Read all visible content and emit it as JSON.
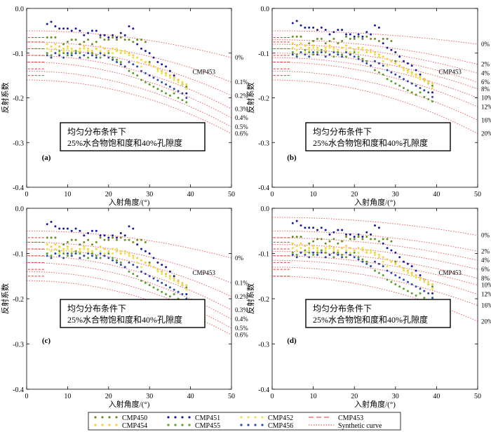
{
  "chart_data": {
    "type": "scatter",
    "shared": {
      "xlabel": "入射角度/(°)",
      "ylabel": "反射系数",
      "xlim": [
        0,
        50
      ],
      "ylim": [
        -0.4,
        0.0
      ],
      "xticks": [
        0,
        10,
        20,
        30,
        40,
        50
      ],
      "yticks": [
        0.0,
        -0.1,
        -0.2,
        -0.3,
        -0.4
      ],
      "ytick_labels": [
        "0.0",
        "-0.1",
        "-0.2",
        "-0.3",
        "-0.4"
      ],
      "annotation_line1": "均匀分布条件下",
      "annotation_line2": "25%水合物饱和度和40%孔隙度",
      "highlight_label": "CMP453",
      "grid": false
    },
    "legend": {
      "placement": "bottom",
      "series": [
        {
          "name": "CMP450",
          "color": "#6b8e23",
          "marker": "point"
        },
        {
          "name": "CMP451",
          "color": "#1a1aa0",
          "marker": "point"
        },
        {
          "name": "CMP452",
          "color": "#e6e64a",
          "marker": "point"
        },
        {
          "name": "CMP453",
          "color": "#e63232",
          "marker": "dash"
        },
        {
          "name": "CMP454",
          "color": "#ffcc33",
          "marker": "point"
        },
        {
          "name": "CMP455",
          "color": "#5aa02c",
          "marker": "point"
        },
        {
          "name": "CMP456",
          "color": "#2a4ab0",
          "marker": "point"
        },
        {
          "name": "Synthetic curve",
          "color": "#e63232",
          "marker": "dotted-line"
        }
      ]
    },
    "series": [
      {
        "name": "CMP450",
        "x": [
          5,
          6,
          7,
          8,
          9,
          10,
          11,
          12,
          13,
          14,
          15,
          16,
          17,
          18,
          19,
          20,
          21,
          22,
          23,
          24,
          25,
          26,
          27,
          28,
          29,
          30,
          31,
          32,
          33,
          34,
          35,
          36,
          37,
          38,
          39
        ],
        "y": [
          -0.065,
          -0.065,
          -0.065,
          -0.085,
          -0.08,
          -0.075,
          -0.07,
          -0.07,
          -0.08,
          -0.075,
          -0.07,
          -0.08,
          -0.075,
          -0.065,
          -0.07,
          -0.07,
          -0.065,
          -0.07,
          -0.065,
          -0.07,
          -0.07,
          -0.075,
          -0.07,
          -0.07,
          -0.075,
          -0.12,
          -0.13,
          -0.135,
          -0.14,
          -0.145,
          -0.15,
          -0.155,
          -0.16,
          -0.17,
          -0.175
        ]
      },
      {
        "name": "CMP451",
        "x": [
          5,
          6,
          7,
          8,
          9,
          10,
          11,
          12,
          13,
          14,
          15,
          16,
          17,
          18,
          19,
          20,
          21,
          22,
          23,
          24,
          25,
          26,
          27,
          28,
          29,
          30,
          31,
          32,
          33,
          34,
          35,
          36,
          37,
          38,
          39
        ],
        "y": [
          -0.035,
          -0.03,
          -0.04,
          -0.045,
          -0.045,
          -0.045,
          -0.05,
          -0.045,
          -0.05,
          -0.06,
          -0.055,
          -0.05,
          -0.05,
          -0.06,
          -0.06,
          -0.065,
          -0.06,
          -0.065,
          -0.055,
          -0.06,
          -0.04,
          -0.045,
          -0.08,
          -0.09,
          -0.095,
          -0.1,
          -0.11,
          -0.12,
          -0.125,
          -0.13,
          -0.14,
          -0.15,
          -0.16,
          -0.17,
          -0.19
        ]
      },
      {
        "name": "CMP452",
        "x": [
          5,
          6,
          7,
          8,
          9,
          10,
          11,
          12,
          13,
          14,
          15,
          16,
          17,
          18,
          19,
          20,
          21,
          22,
          23,
          24,
          25,
          26,
          27,
          28,
          29,
          30,
          31,
          32,
          33,
          34,
          35,
          36,
          37,
          38,
          39
        ],
        "y": [
          -0.09,
          -0.095,
          -0.09,
          -0.1,
          -0.095,
          -0.09,
          -0.095,
          -0.1,
          -0.095,
          -0.09,
          -0.095,
          -0.1,
          -0.09,
          -0.095,
          -0.1,
          -0.095,
          -0.1,
          -0.09,
          -0.095,
          -0.1,
          -0.105,
          -0.11,
          -0.12,
          -0.13,
          -0.12,
          -0.125,
          -0.13,
          -0.14,
          -0.145,
          -0.15,
          -0.155,
          -0.16,
          -0.165,
          -0.17,
          -0.18
        ]
      },
      {
        "name": "CMP453",
        "x": [
          0,
          5
        ],
        "y": [
          -0.075,
          -0.075
        ]
      },
      {
        "name": "CMP454",
        "x": [
          5,
          6,
          7,
          8,
          9,
          10,
          11,
          12,
          13,
          14,
          15,
          16,
          17,
          18,
          19,
          20,
          21,
          22,
          23,
          24,
          25,
          26,
          27,
          28,
          29,
          30,
          31,
          32,
          33,
          34,
          35,
          36,
          37,
          38,
          39
        ],
        "y": [
          -0.08,
          -0.085,
          -0.08,
          -0.085,
          -0.09,
          -0.085,
          -0.09,
          -0.095,
          -0.09,
          -0.085,
          -0.09,
          -0.095,
          -0.09,
          -0.085,
          -0.09,
          -0.095,
          -0.09,
          -0.095,
          -0.1,
          -0.095,
          -0.1,
          -0.105,
          -0.11,
          -0.115,
          -0.12,
          -0.125,
          -0.13,
          -0.135,
          -0.14,
          -0.145,
          -0.15,
          -0.155,
          -0.16,
          -0.165,
          -0.17
        ]
      },
      {
        "name": "CMP455",
        "x": [
          5,
          6,
          7,
          8,
          9,
          10,
          11,
          12,
          13,
          14,
          15,
          16,
          17,
          18,
          19,
          20,
          21,
          22,
          23,
          24,
          25,
          26,
          27,
          28,
          29,
          30,
          31,
          32,
          33,
          34,
          35,
          36,
          37,
          38,
          39
        ],
        "y": [
          -0.1,
          -0.105,
          -0.1,
          -0.095,
          -0.1,
          -0.105,
          -0.1,
          -0.095,
          -0.1,
          -0.105,
          -0.11,
          -0.1,
          -0.105,
          -0.11,
          -0.105,
          -0.1,
          -0.11,
          -0.115,
          -0.12,
          -0.13,
          -0.14,
          -0.145,
          -0.15,
          -0.16,
          -0.165,
          -0.17,
          -0.175,
          -0.18,
          -0.185,
          -0.19,
          -0.195,
          -0.19,
          -0.2,
          -0.205,
          -0.21
        ]
      },
      {
        "name": "CMP456",
        "x": [
          5,
          6,
          7,
          8,
          9,
          10,
          11,
          12,
          13,
          14,
          15,
          16,
          17,
          18,
          19,
          20,
          21,
          22,
          23,
          24,
          25,
          26,
          27,
          28,
          29,
          30,
          31,
          32,
          33,
          34,
          35,
          36,
          37,
          38,
          39
        ],
        "y": [
          -0.105,
          -0.11,
          -0.1,
          -0.105,
          -0.11,
          -0.1,
          -0.105,
          -0.1,
          -0.11,
          -0.105,
          -0.1,
          -0.105,
          -0.11,
          -0.1,
          -0.105,
          -0.11,
          -0.115,
          -0.12,
          -0.125,
          -0.13,
          -0.12,
          -0.125,
          -0.13,
          -0.14,
          -0.145,
          -0.15,
          -0.155,
          -0.16,
          -0.165,
          -0.17,
          -0.175,
          -0.18,
          -0.185,
          -0.19,
          -0.2
        ]
      }
    ],
    "panels": [
      {
        "label": "(a)",
        "curves": [
          {
            "label": "0%",
            "y0": -0.05,
            "y50": -0.11
          },
          {
            "label": "0.1%",
            "y0": -0.075,
            "y50": -0.165
          },
          {
            "label": "0.2%",
            "y0": -0.09,
            "y50": -0.195
          },
          {
            "label": "0.3%",
            "y0": -0.105,
            "y50": -0.225
          },
          {
            "label": "0.4%",
            "y0": -0.12,
            "y50": -0.245
          },
          {
            "label": "0.5%",
            "y0": -0.14,
            "y50": -0.265
          },
          {
            "label": "0.6%",
            "y0": -0.16,
            "y50": -0.28
          }
        ]
      },
      {
        "label": "(b)",
        "curves": [
          {
            "label": "0%",
            "y0": -0.05,
            "y50": -0.08
          },
          {
            "label": "2%",
            "y0": -0.07,
            "y50": -0.125
          },
          {
            "label": "4%",
            "y0": -0.08,
            "y50": -0.145
          },
          {
            "label": "6%",
            "y0": -0.09,
            "y50": -0.165
          },
          {
            "label": "8%",
            "y0": -0.1,
            "y50": -0.18
          },
          {
            "label": "10%",
            "y0": -0.11,
            "y50": -0.2
          },
          {
            "label": "12%",
            "y0": -0.12,
            "y50": -0.22
          },
          {
            "label": "16%",
            "y0": -0.14,
            "y50": -0.25
          },
          {
            "label": "20%",
            "y0": -0.16,
            "y50": -0.28
          }
        ]
      },
      {
        "label": "(c)",
        "curves": [
          {
            "label": "0%",
            "y0": -0.05,
            "y50": -0.11
          },
          {
            "label": "0.1%",
            "y0": -0.075,
            "y50": -0.165
          },
          {
            "label": "0.2%",
            "y0": -0.09,
            "y50": -0.195
          },
          {
            "label": "0.3%",
            "y0": -0.105,
            "y50": -0.225
          },
          {
            "label": "0.4%",
            "y0": -0.12,
            "y50": -0.245
          },
          {
            "label": "0.5%",
            "y0": -0.14,
            "y50": -0.265
          },
          {
            "label": "0.6%",
            "y0": -0.16,
            "y50": -0.28
          }
        ]
      },
      {
        "label": "(d)",
        "curves": [
          {
            "label": "0%",
            "y0": -0.02,
            "y50": -0.06
          },
          {
            "label": "2%",
            "y0": -0.05,
            "y50": -0.095
          },
          {
            "label": "4%",
            "y0": -0.065,
            "y50": -0.115
          },
          {
            "label": "6%",
            "y0": -0.08,
            "y50": -0.135
          },
          {
            "label": "8%",
            "y0": -0.095,
            "y50": -0.155
          },
          {
            "label": "10%",
            "y0": -0.105,
            "y50": -0.17
          },
          {
            "label": "12%",
            "y0": -0.115,
            "y50": -0.19
          },
          {
            "label": "16%",
            "y0": -0.13,
            "y50": -0.215
          },
          {
            "label": "20%",
            "y0": -0.15,
            "y50": -0.25
          }
        ]
      }
    ]
  }
}
